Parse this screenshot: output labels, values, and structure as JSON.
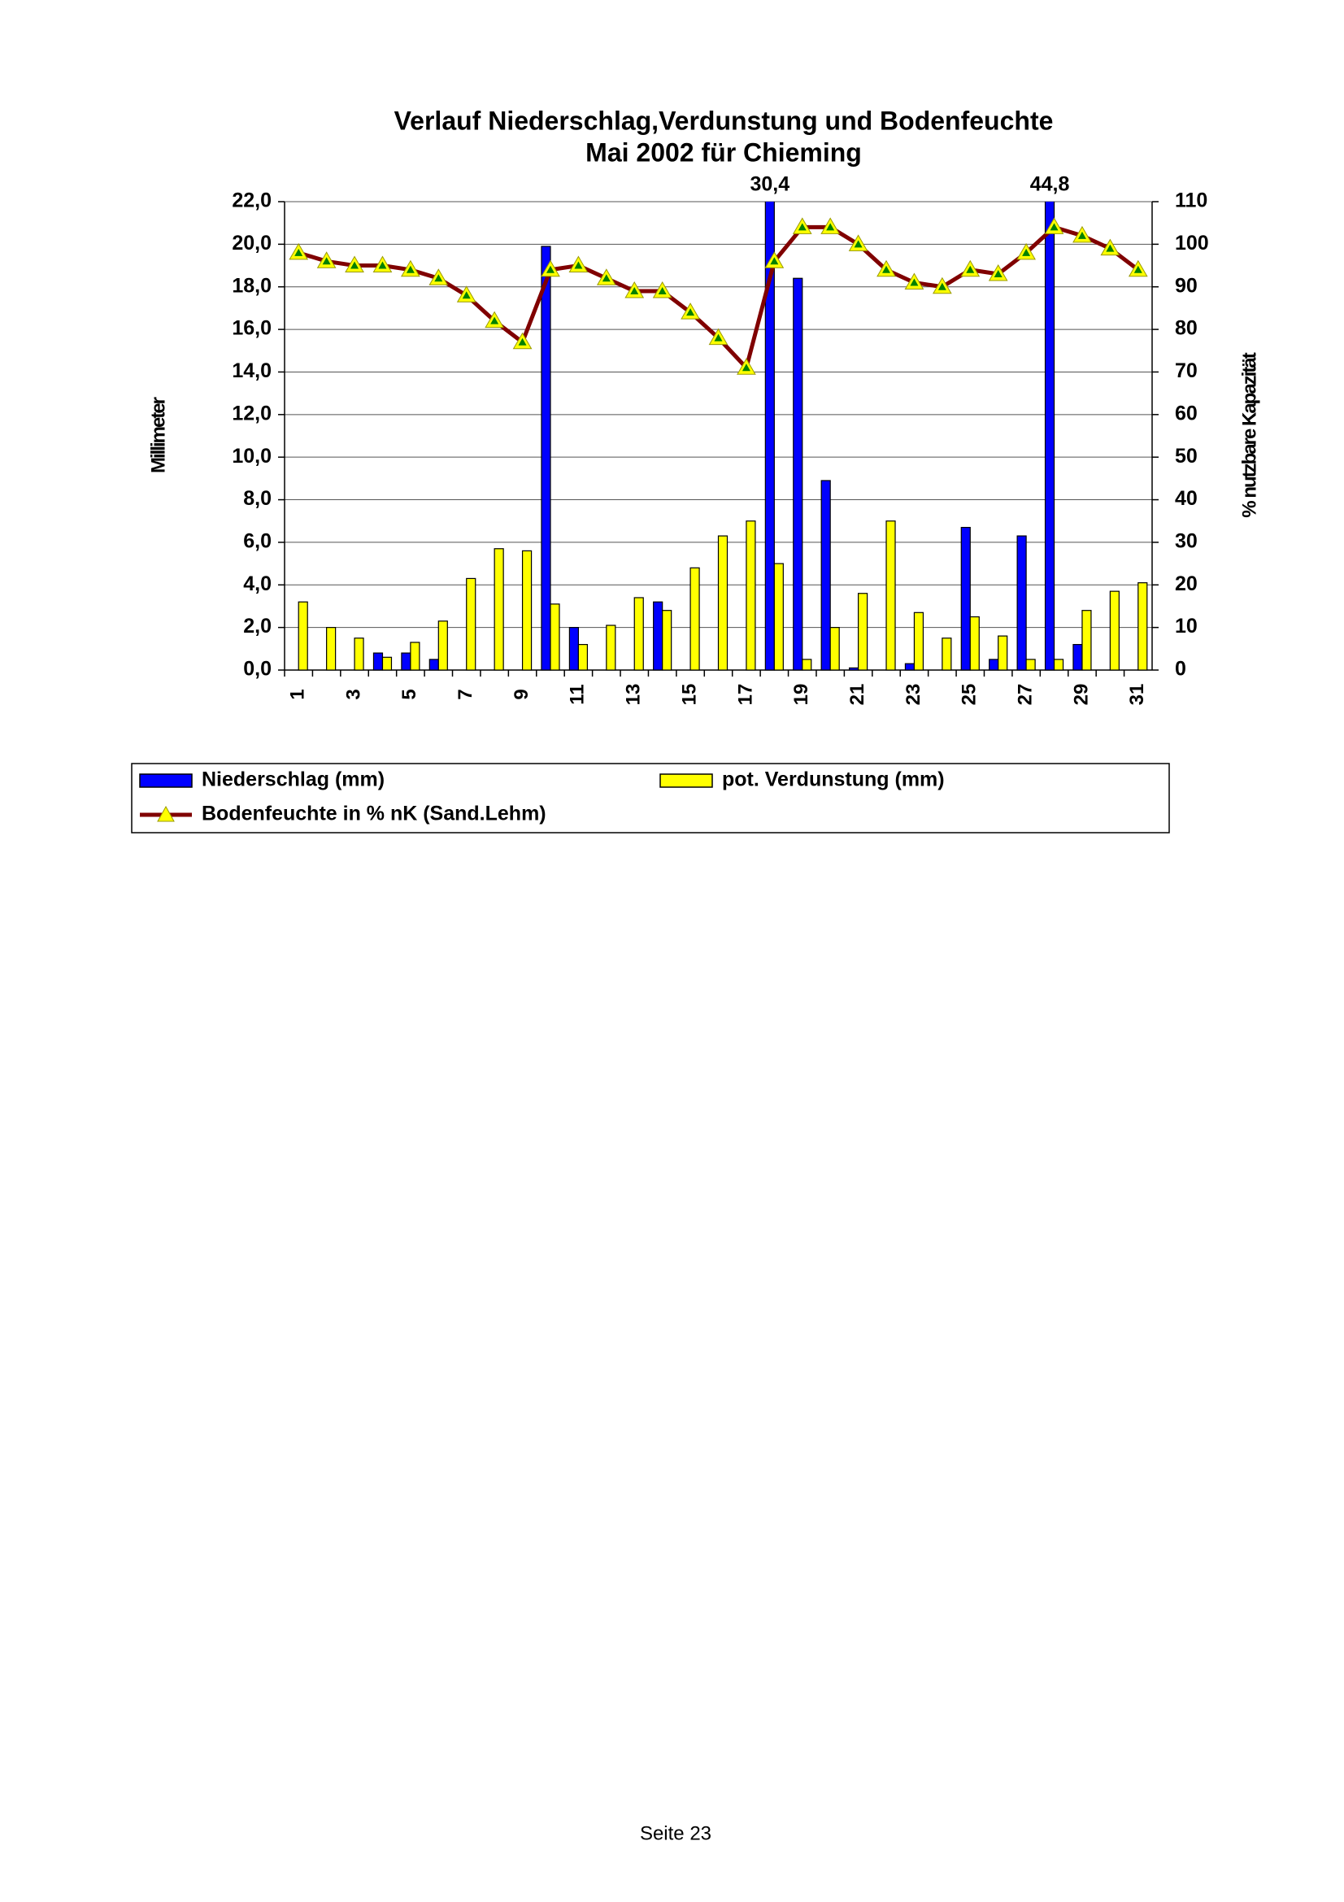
{
  "chart_data": {
    "type": "bar",
    "title": "Verlauf Niederschlag,Verdunstung und Bodenfeuchte",
    "subtitle": "Mai 2002 für Chieming",
    "y_label": "Millimeter",
    "y2_label": "% nutzbare Kapazität",
    "categories": [
      "1",
      null,
      "3",
      null,
      "5",
      null,
      "7",
      null,
      "9",
      null,
      "11",
      null,
      "13",
      null,
      "15",
      null,
      "17",
      null,
      "19",
      null,
      "21",
      null,
      "23",
      null,
      "25",
      null,
      "27",
      null,
      "29",
      null,
      "31"
    ],
    "series": [
      {
        "name": "Niederschlag (mm)",
        "type": "bar",
        "color": "#0000ff",
        "values": [
          0,
          0,
          0,
          0.8,
          0.8,
          0.5,
          0,
          0,
          0,
          19.9,
          2.0,
          0,
          0,
          3.2,
          0,
          0,
          0,
          30.4,
          18.4,
          8.9,
          0.1,
          0,
          0.3,
          0,
          6.7,
          0.5,
          6.3,
          44.8,
          1.2,
          0,
          0
        ],
        "value_labels": [
          null,
          null,
          null,
          null,
          null,
          null,
          null,
          null,
          null,
          null,
          null,
          null,
          null,
          null,
          null,
          null,
          null,
          "30,4",
          null,
          null,
          null,
          null,
          null,
          null,
          null,
          null,
          null,
          "44,8",
          null,
          null,
          null
        ]
      },
      {
        "name": "pot. Verdunstung (mm)",
        "type": "bar",
        "color": "#ffff00",
        "values": [
          3.2,
          2.0,
          1.5,
          0.6,
          1.3,
          2.3,
          4.3,
          5.7,
          5.6,
          3.1,
          1.2,
          2.1,
          3.4,
          2.8,
          4.8,
          6.3,
          7.0,
          5.0,
          0.5,
          2.0,
          3.6,
          7.0,
          2.7,
          1.5,
          2.5,
          1.6,
          0.5,
          0.5,
          2.8,
          3.7,
          4.1
        ]
      },
      {
        "name": "Bodenfeuchte in % nK (Sand.Lehm)",
        "type": "line",
        "axis": "y2",
        "color": "#800000",
        "values": [
          98,
          96,
          95,
          95,
          94,
          92,
          88,
          82,
          77,
          94,
          95,
          92,
          89,
          89,
          84,
          78,
          71,
          96,
          104,
          104,
          100,
          94,
          91,
          90,
          94,
          93,
          98,
          104,
          102,
          99,
          94
        ]
      }
    ],
    "ylim": [
      0,
      22
    ],
    "yticks": [
      {
        "value": 0,
        "label": "0,0"
      },
      {
        "value": 2,
        "label": "2,0"
      },
      {
        "value": 4,
        "label": "4,0"
      },
      {
        "value": 6,
        "label": "6,0"
      },
      {
        "value": 8,
        "label": "8,0"
      },
      {
        "value": 10,
        "label": "10,0"
      },
      {
        "value": 12,
        "label": "12,0"
      },
      {
        "value": 14,
        "label": "14,0"
      },
      {
        "value": 16,
        "label": "16,0"
      },
      {
        "value": 18,
        "label": "18,0"
      },
      {
        "value": 20,
        "label": "20,0"
      },
      {
        "value": 22,
        "label": "22,0"
      }
    ],
    "y2lim": [
      0,
      110
    ],
    "y2ticks": [
      0,
      10,
      20,
      30,
      40,
      50,
      60,
      70,
      80,
      90,
      100,
      110
    ],
    "grid": true
  },
  "footer": "Seite 23"
}
